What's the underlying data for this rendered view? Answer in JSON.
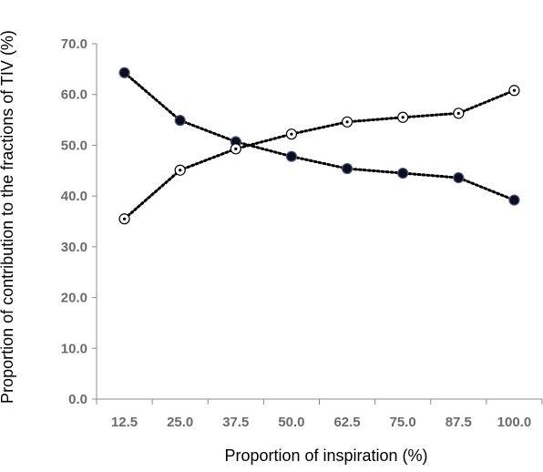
{
  "chart_data": {
    "type": "line",
    "title": "",
    "xlabel": "Proportion of inspiration (%)",
    "ylabel": "Proportion of contribution to the fractions of TIV (%)",
    "categories": [
      "12.5",
      "25.0",
      "37.5",
      "50.0",
      "62.5",
      "75.0",
      "87.5",
      "100.0"
    ],
    "y_ticks": [
      "0.0",
      "10.0",
      "20.0",
      "30.0",
      "40.0",
      "50.0",
      "60.0",
      "70.0"
    ],
    "ylim": [
      0,
      70
    ],
    "grid": false,
    "legend": "none",
    "series": [
      {
        "marker": "filled-circle",
        "line_style": "dotted",
        "color": "#000000",
        "values": [
          64.3,
          54.9,
          50.7,
          47.8,
          45.4,
          44.5,
          43.6,
          39.2
        ]
      },
      {
        "marker": "open-circle-dot",
        "line_style": "dotted",
        "color": "#000000",
        "values": [
          35.5,
          45.1,
          49.3,
          52.2,
          54.6,
          55.5,
          56.3,
          60.8
        ]
      }
    ]
  }
}
